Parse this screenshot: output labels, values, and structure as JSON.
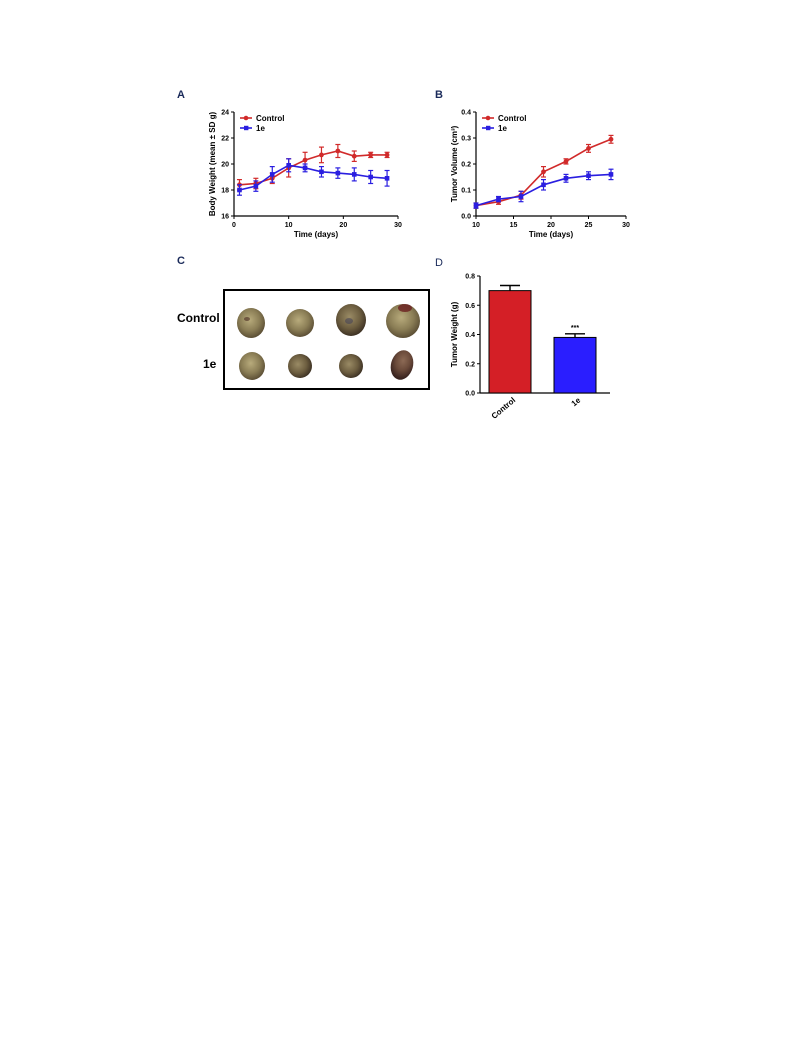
{
  "panels": {
    "A": {
      "letter": "A",
      "chart_data": {
        "type": "line",
        "xlabel": "Time (days)",
        "ylabel": "Body Weight (mean ± SD g)",
        "xlim": [
          0,
          30
        ],
        "ylim": [
          16,
          24
        ],
        "xticks": [
          0,
          10,
          20,
          30
        ],
        "yticks": [
          16,
          18,
          20,
          22,
          24
        ],
        "legend_position": "top-left",
        "series": [
          {
            "name": "Control",
            "color": "#d12a2a",
            "marker": "circle",
            "x": [
              1,
              4,
              7,
              10,
              13,
              16,
              19,
              22,
              25,
              28
            ],
            "y": [
              18.4,
              18.5,
              18.9,
              19.7,
              20.3,
              20.7,
              21.0,
              20.6,
              20.7,
              20.7
            ],
            "err": [
              0.4,
              0.4,
              0.4,
              0.7,
              0.6,
              0.6,
              0.5,
              0.4,
              0.2,
              0.2
            ]
          },
          {
            "name": "1e",
            "color": "#2a1ee0",
            "marker": "square",
            "x": [
              1,
              4,
              7,
              10,
              13,
              16,
              19,
              22,
              25,
              28
            ],
            "y": [
              18.0,
              18.3,
              19.2,
              19.9,
              19.7,
              19.4,
              19.3,
              19.2,
              19.0,
              18.9
            ],
            "err": [
              0.4,
              0.4,
              0.6,
              0.5,
              0.3,
              0.4,
              0.4,
              0.5,
              0.5,
              0.6
            ]
          }
        ]
      }
    },
    "B": {
      "letter": "B",
      "chart_data": {
        "type": "line",
        "xlabel": "Time (days)",
        "ylabel": "Tumor Volume (cm³)",
        "xlim": [
          10,
          30
        ],
        "ylim": [
          0.0,
          0.4
        ],
        "xticks": [
          10,
          15,
          20,
          25,
          30
        ],
        "yticks": [
          0.0,
          0.1,
          0.2,
          0.3,
          0.4
        ],
        "ytick_labels": [
          "0.0",
          "0.1",
          "0.2",
          "0.3",
          "0.4"
        ],
        "legend_position": "top-left",
        "series": [
          {
            "name": "Control",
            "color": "#d12a2a",
            "marker": "circle",
            "x": [
              10,
              13,
              16,
              19,
              22,
              25,
              28
            ],
            "y": [
              0.04,
              0.055,
              0.08,
              0.17,
              0.21,
              0.26,
              0.295
            ],
            "err": [
              0.01,
              0.01,
              0.015,
              0.02,
              0.01,
              0.015,
              0.015
            ]
          },
          {
            "name": "1e",
            "color": "#2a1ee0",
            "marker": "square",
            "x": [
              10,
              13,
              16,
              19,
              22,
              25,
              28
            ],
            "y": [
              0.04,
              0.065,
              0.075,
              0.12,
              0.145,
              0.155,
              0.16
            ],
            "err": [
              0.01,
              0.01,
              0.02,
              0.02,
              0.015,
              0.015,
              0.02
            ]
          }
        ]
      }
    },
    "C": {
      "letter": "C",
      "row_labels": [
        "Control",
        "1e"
      ]
    },
    "D": {
      "letter": "D",
      "chart_data": {
        "type": "bar",
        "categories": [
          "Control",
          "1e"
        ],
        "values": [
          0.7,
          0.38
        ],
        "err": [
          0.035,
          0.025
        ],
        "colors": [
          "#d41f26",
          "#2a1eff"
        ],
        "annotations": [
          "",
          "***"
        ],
        "ylabel": "Tumor Weight (g)",
        "xlabel": "",
        "ylim": [
          0.0,
          0.8
        ],
        "yticks": [
          0.0,
          0.2,
          0.4,
          0.6,
          0.8
        ],
        "ytick_labels": [
          "0.0",
          "0.2",
          "0.4",
          "0.6",
          "0.8"
        ]
      }
    }
  }
}
